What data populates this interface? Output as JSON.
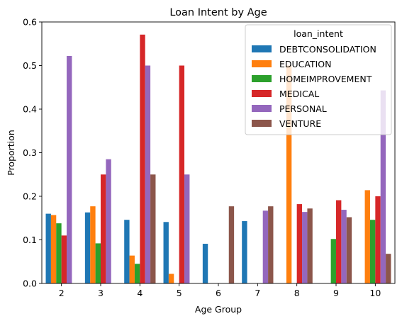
{
  "chart_data": {
    "type": "bar",
    "title": "Loan Intent by Age",
    "xlabel": "Age Group",
    "ylabel": "Proportion",
    "ylim": [
      0,
      0.6
    ],
    "yticks": [
      "0.0",
      "0.1",
      "0.2",
      "0.3",
      "0.4",
      "0.5",
      "0.6"
    ],
    "categories": [
      "2",
      "3",
      "4",
      "5",
      "6",
      "7",
      "8",
      "9",
      "10"
    ],
    "legend_title": "loan_intent",
    "legend_position": "top-right",
    "grid": false,
    "series": [
      {
        "name": "DEBTCONSOLIDATION",
        "color": "#1f77b4",
        "values": [
          0.16,
          0.163,
          0.146,
          0.141,
          0.091,
          0.143,
          0,
          0,
          0
        ]
      },
      {
        "name": "EDUCATION",
        "color": "#ff7f0e",
        "values": [
          0.157,
          0.177,
          0.064,
          0.022,
          0,
          0,
          0.5,
          0,
          0.214
        ]
      },
      {
        "name": "HOMEIMPROVEMENT",
        "color": "#2ca02c",
        "values": [
          0.138,
          0.092,
          0.045,
          0,
          0,
          0,
          0,
          0.102,
          0.146
        ]
      },
      {
        "name": "MEDICAL",
        "color": "#d62728",
        "values": [
          0.11,
          0.25,
          0.571,
          0.5,
          0,
          0,
          0.182,
          0.191,
          0.2
        ]
      },
      {
        "name": "PERSONAL",
        "color": "#9467bd",
        "values": [
          0.522,
          0.285,
          0.5,
          0.25,
          0,
          0.167,
          0.164,
          0.169,
          0.443
        ]
      },
      {
        "name": "VENTURE",
        "color": "#8c564b",
        "values": [
          0,
          0,
          0.25,
          0,
          0.177,
          0.177,
          0.172,
          0.152,
          0.068
        ]
      }
    ]
  }
}
